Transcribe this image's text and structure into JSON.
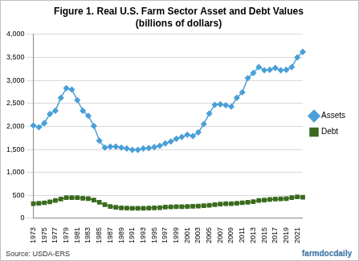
{
  "chart_data": {
    "type": "line",
    "title": "Figure 1. Real U.S. Farm Sector Asset and Debt Values",
    "subtitle": "(billions of dollars)",
    "annotations": [
      "Source: USDA-ERS",
      "farmdocdaily"
    ],
    "categories": [
      "1973",
      null,
      "1975",
      null,
      "1977",
      null,
      "1979",
      null,
      "1981",
      null,
      "1983",
      null,
      "1985",
      null,
      "1987",
      null,
      "1989",
      null,
      "1991",
      null,
      "1993",
      null,
      "1995",
      null,
      "1997",
      null,
      "1999",
      null,
      "2001",
      null,
      "2003",
      null,
      "2005",
      null,
      "2007",
      null,
      "2009",
      null,
      "2011",
      null,
      "2013",
      null,
      "2015",
      null,
      "2017",
      null,
      "2019",
      null,
      "2021",
      null
    ],
    "series": [
      {
        "name": "Assets",
        "color": "#4a9fd8",
        "marker": "diamond",
        "line_style": "solid",
        "values": [
          2020,
          1980,
          2070,
          2270,
          2340,
          2620,
          2830,
          2800,
          2570,
          2340,
          2230,
          2010,
          1690,
          1540,
          1560,
          1560,
          1540,
          1520,
          1490,
          1490,
          1520,
          1530,
          1550,
          1580,
          1630,
          1670,
          1730,
          1770,
          1820,
          1790,
          1870,
          2050,
          2280,
          2470,
          2480,
          2460,
          2430,
          2620,
          2740,
          3050,
          3160,
          3290,
          3220,
          3230,
          3270,
          3220,
          3230,
          3290,
          3500,
          3620
        ]
      },
      {
        "name": "Debt",
        "color": "#3a6b1e",
        "marker": "square",
        "line_style": "solid",
        "values": [
          320,
          330,
          340,
          360,
          390,
          420,
          450,
          450,
          450,
          440,
          430,
          400,
          350,
          300,
          260,
          240,
          230,
          225,
          220,
          220,
          220,
          225,
          230,
          235,
          245,
          250,
          255,
          255,
          260,
          265,
          270,
          275,
          285,
          300,
          310,
          320,
          320,
          330,
          340,
          350,
          365,
          390,
          400,
          410,
          420,
          425,
          430,
          450,
          470,
          460
        ]
      }
    ],
    "ylim": [
      0,
      4000
    ],
    "yticks": [
      0,
      500,
      {
        "value": 1000,
        "label": "1,000"
      },
      {
        "value": 1500,
        "label": "1,500"
      },
      {
        "value": 2000,
        "label": "2,000"
      },
      {
        "value": 2500,
        "label": "2,500"
      },
      {
        "value": 3000,
        "label": "3,000"
      },
      {
        "value": 3500,
        "label": "3,500"
      },
      {
        "value": 4000,
        "label": "4,000"
      }
    ],
    "grid": true,
    "legend": "right"
  }
}
